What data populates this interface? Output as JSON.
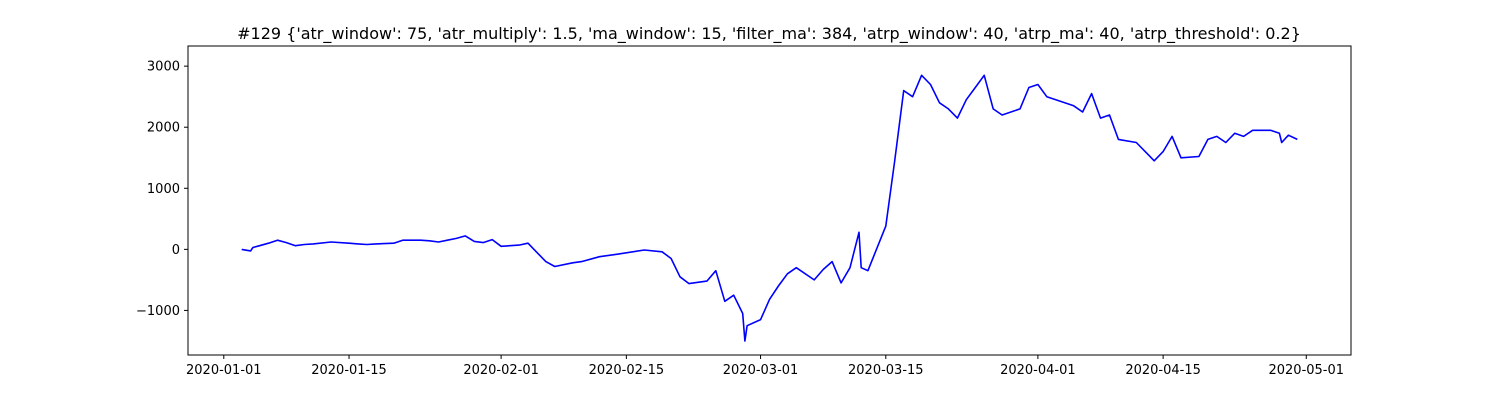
{
  "chart_data": {
    "type": "line",
    "title": "#129 {'atr_window': 75, 'atr_multiply': 1.5, 'ma_window': 15, 'filter_ma': 384, 'atrp_window': 40, 'atrp_ma': 40, 'atrp_threshold': 0.2}",
    "xlabel": "",
    "ylabel": "",
    "x_ticks": [
      "2020-01-01",
      "2020-01-15",
      "2020-02-01",
      "2020-02-15",
      "2020-03-01",
      "2020-03-15",
      "2020-04-01",
      "2020-04-15",
      "2020-05-01"
    ],
    "y_ticks": [
      -1000,
      0,
      1000,
      2000,
      3000
    ],
    "xlim": [
      "2019-12-28",
      "2020-05-06"
    ],
    "ylim": [
      -1730,
      3330
    ],
    "grid": false,
    "legend": "none",
    "series": [
      {
        "color": "#0000ff",
        "points": [
          [
            "2020-01-03",
            0
          ],
          [
            "2020-01-04",
            -25
          ],
          [
            "2020-01-04",
            30
          ],
          [
            "2020-01-05",
            60
          ],
          [
            "2020-01-06",
            100
          ],
          [
            "2020-01-07",
            150
          ],
          [
            "2020-01-08",
            110
          ],
          [
            "2020-01-09",
            60
          ],
          [
            "2020-01-10",
            80
          ],
          [
            "2020-01-11",
            90
          ],
          [
            "2020-01-13",
            120
          ],
          [
            "2020-01-15",
            100
          ],
          [
            "2020-01-16",
            90
          ],
          [
            "2020-01-17",
            80
          ],
          [
            "2020-01-18",
            90
          ],
          [
            "2020-01-20",
            100
          ],
          [
            "2020-01-21",
            150
          ],
          [
            "2020-01-23",
            150
          ],
          [
            "2020-01-24",
            140
          ],
          [
            "2020-01-25",
            120
          ],
          [
            "2020-01-26",
            150
          ],
          [
            "2020-01-27",
            180
          ],
          [
            "2020-01-28",
            220
          ],
          [
            "2020-01-29",
            130
          ],
          [
            "2020-01-30",
            110
          ],
          [
            "2020-01-31",
            160
          ],
          [
            "2020-02-01",
            50
          ],
          [
            "2020-02-03",
            70
          ],
          [
            "2020-02-04",
            100
          ],
          [
            "2020-02-05",
            -50
          ],
          [
            "2020-02-06",
            -200
          ],
          [
            "2020-02-07",
            -280
          ],
          [
            "2020-02-09",
            -220
          ],
          [
            "2020-02-10",
            -200
          ],
          [
            "2020-02-12",
            -120
          ],
          [
            "2020-02-14",
            -80
          ],
          [
            "2020-02-17",
            -10
          ],
          [
            "2020-02-19",
            -40
          ],
          [
            "2020-02-20",
            -150
          ],
          [
            "2020-02-21",
            -450
          ],
          [
            "2020-02-22",
            -560
          ],
          [
            "2020-02-24",
            -520
          ],
          [
            "2020-02-25",
            -350
          ],
          [
            "2020-02-26",
            -850
          ],
          [
            "2020-02-27",
            -750
          ],
          [
            "2020-02-28",
            -1050
          ],
          [
            "2020-02-28",
            -1500
          ],
          [
            "2020-02-28",
            -1250
          ],
          [
            "2020-03-01",
            -1150
          ],
          [
            "2020-03-02",
            -820
          ],
          [
            "2020-03-03",
            -600
          ],
          [
            "2020-03-04",
            -400
          ],
          [
            "2020-03-05",
            -300
          ],
          [
            "2020-03-07",
            -500
          ],
          [
            "2020-03-08",
            -330
          ],
          [
            "2020-03-09",
            -200
          ],
          [
            "2020-03-10",
            -550
          ],
          [
            "2020-03-11",
            -300
          ],
          [
            "2020-03-12",
            280
          ],
          [
            "2020-03-12",
            -300
          ],
          [
            "2020-03-13",
            -350
          ],
          [
            "2020-03-15",
            380
          ],
          [
            "2020-03-16",
            1450
          ],
          [
            "2020-03-17",
            2600
          ],
          [
            "2020-03-18",
            2500
          ],
          [
            "2020-03-19",
            2850
          ],
          [
            "2020-03-20",
            2700
          ],
          [
            "2020-03-21",
            2400
          ],
          [
            "2020-03-22",
            2300
          ],
          [
            "2020-03-23",
            2150
          ],
          [
            "2020-03-24",
            2450
          ],
          [
            "2020-03-25",
            2650
          ],
          [
            "2020-03-26",
            2850
          ],
          [
            "2020-03-27",
            2300
          ],
          [
            "2020-03-28",
            2200
          ],
          [
            "2020-03-30",
            2300
          ],
          [
            "2020-03-31",
            2650
          ],
          [
            "2020-04-01",
            2700
          ],
          [
            "2020-04-02",
            2500
          ],
          [
            "2020-04-03",
            2450
          ],
          [
            "2020-04-05",
            2350
          ],
          [
            "2020-04-06",
            2250
          ],
          [
            "2020-04-07",
            2550
          ],
          [
            "2020-04-08",
            2150
          ],
          [
            "2020-04-09",
            2200
          ],
          [
            "2020-04-10",
            1800
          ],
          [
            "2020-04-12",
            1750
          ],
          [
            "2020-04-13",
            1600
          ],
          [
            "2020-04-14",
            1450
          ],
          [
            "2020-04-15",
            1600
          ],
          [
            "2020-04-16",
            1850
          ],
          [
            "2020-04-17",
            1500
          ],
          [
            "2020-04-19",
            1520
          ],
          [
            "2020-04-20",
            1800
          ],
          [
            "2020-04-21",
            1850
          ],
          [
            "2020-04-22",
            1750
          ],
          [
            "2020-04-23",
            1900
          ],
          [
            "2020-04-24",
            1850
          ],
          [
            "2020-04-25",
            1950
          ],
          [
            "2020-04-27",
            1950
          ],
          [
            "2020-04-28",
            1900
          ],
          [
            "2020-04-28",
            1750
          ],
          [
            "2020-04-29",
            1870
          ],
          [
            "2020-04-30",
            1800
          ]
        ]
      }
    ]
  }
}
